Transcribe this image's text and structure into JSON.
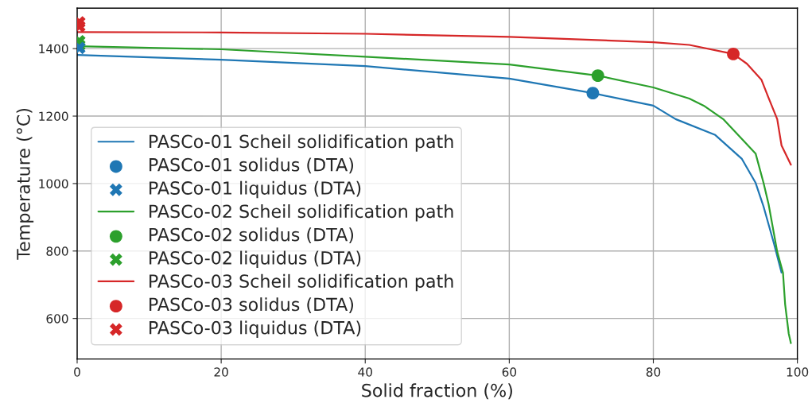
{
  "chart_data": {
    "type": "line",
    "xlabel": "Solid fraction (%)",
    "ylabel": "Temperature (°C)",
    "xlim": [
      0,
      100
    ],
    "ylim": [
      480,
      1520
    ],
    "xticks": [
      0,
      20,
      40,
      60,
      80,
      100
    ],
    "yticks": [
      600,
      800,
      1000,
      1200,
      1400
    ],
    "grid": true,
    "legend": "bottom left",
    "series": [
      {
        "name": "PASCo-01 Scheil solidification path",
        "color": "#1f77b4",
        "x": [
          0,
          20,
          40,
          60,
          71.6,
          80,
          83.1,
          88.6,
          92.3,
          94.2,
          95.3,
          96.7,
          97.8
        ],
        "values": [
          1381,
          1367,
          1348,
          1311,
          1268,
          1231,
          1191,
          1144,
          1073,
          1002,
          932,
          826,
          736
        ]
      },
      {
        "name": "PASCo-01 solidus (DTA)",
        "type": "scatter",
        "marker": "circle",
        "color": "#1f77b4",
        "x": [
          71.6
        ],
        "values": [
          1268
        ]
      },
      {
        "name": "PASCo-01 liquidus (DTA)",
        "type": "scatter",
        "marker": "cross",
        "color": "#1f77b4",
        "x": [
          0.3
        ],
        "values": [
          1402
        ]
      },
      {
        "name": "PASCo-02 Scheil solidification path",
        "color": "#2ca02c",
        "x": [
          0,
          20,
          40,
          60,
          72.3,
          80,
          85,
          87,
          89.7,
          94.2,
          95.3,
          96.0,
          97.2,
          98.0,
          98.3,
          98.8,
          99.1
        ],
        "values": [
          1407,
          1398,
          1376,
          1353,
          1320,
          1285,
          1252,
          1231,
          1191,
          1089,
          1002,
          939,
          798,
          736,
          642,
          555,
          527
        ]
      },
      {
        "name": "PASCo-02 solidus (DTA)",
        "type": "scatter",
        "marker": "circle",
        "color": "#2ca02c",
        "x": [
          72.3
        ],
        "values": [
          1320
        ]
      },
      {
        "name": "PASCo-02 liquidus (DTA)",
        "type": "scatter",
        "marker": "cross",
        "color": "#2ca02c",
        "x": [
          0.3,
          0.3
        ],
        "values": [
          1422,
          1410
        ]
      },
      {
        "name": "PASCo-03 Scheil solidification path",
        "color": "#d62728",
        "x": [
          0,
          20,
          40,
          60,
          80,
          85,
          91.1,
          93,
          95,
          96,
          97.2,
          97.8,
          99.1
        ],
        "values": [
          1449,
          1448,
          1444,
          1435,
          1419,
          1411,
          1384,
          1355,
          1308,
          1254,
          1191,
          1113,
          1056
        ]
      },
      {
        "name": "PASCo-03 solidus (DTA)",
        "type": "scatter",
        "marker": "circle",
        "color": "#d62728",
        "x": [
          91.1
        ],
        "values": [
          1384
        ]
      },
      {
        "name": "PASCo-03 liquidus (DTA)",
        "type": "scatter",
        "marker": "cross",
        "color": "#d62728",
        "x": [
          0.3,
          0.3
        ],
        "values": [
          1478,
          1466
        ]
      }
    ]
  }
}
